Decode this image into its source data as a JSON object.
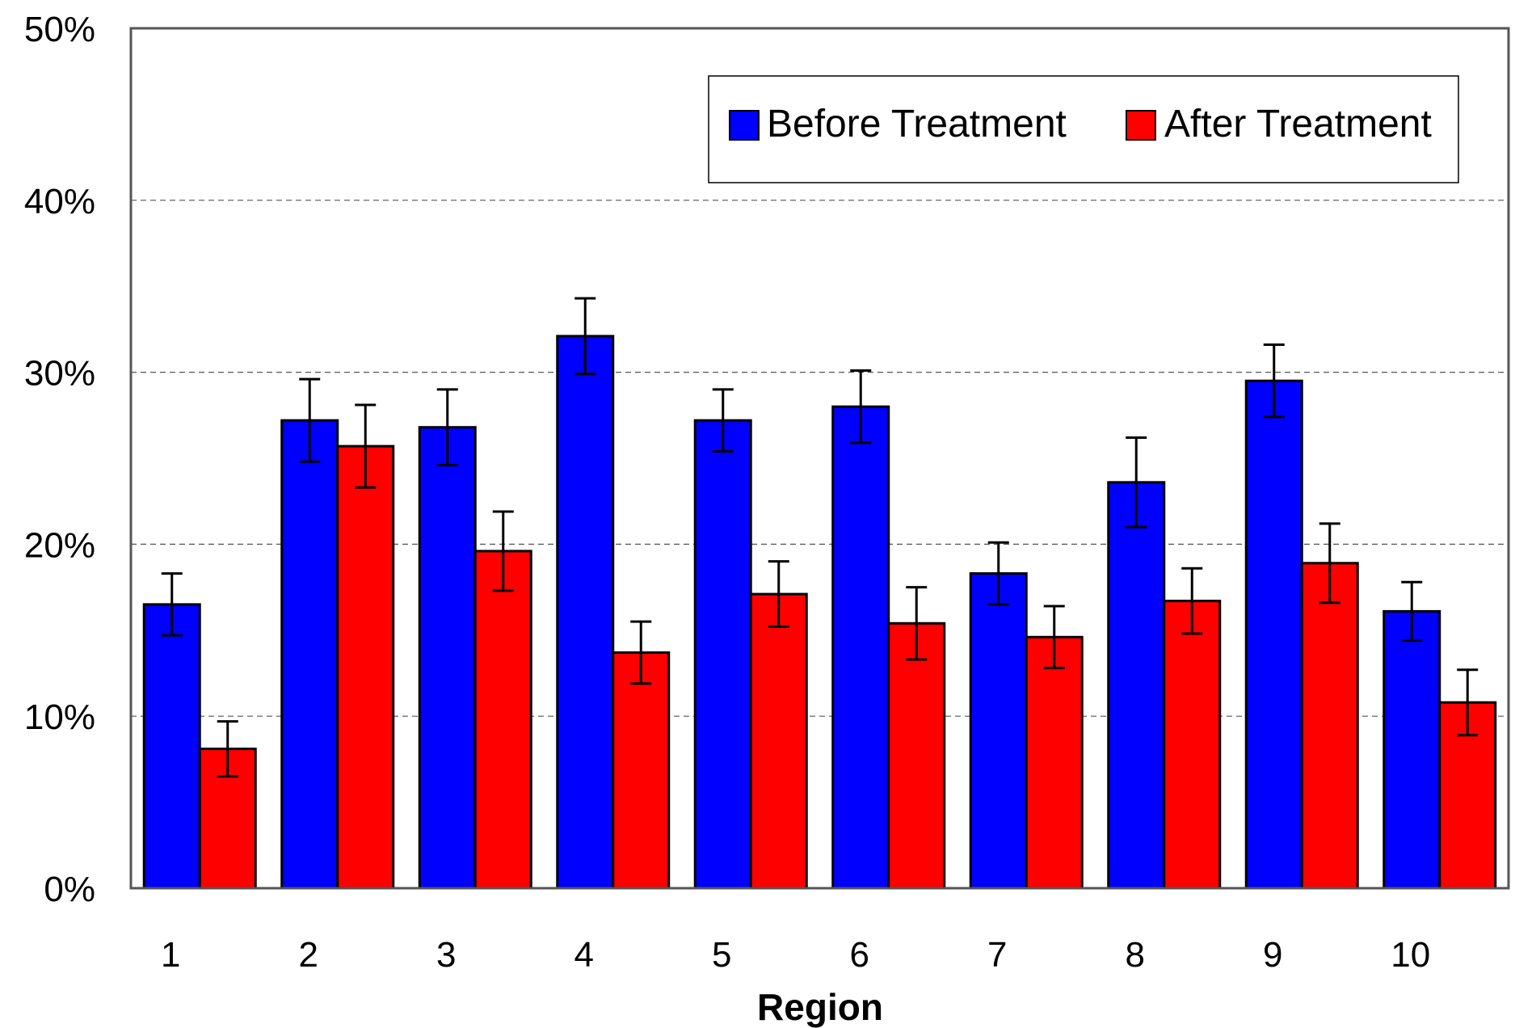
{
  "chart_data": {
    "type": "bar",
    "title": "",
    "xlabel": "Region",
    "ylabel": "",
    "categories": [
      "1",
      "2",
      "3",
      "4",
      "5",
      "6",
      "7",
      "8",
      "9",
      "10"
    ],
    "series": [
      {
        "name": "Before Treatment",
        "color": "#0000ff",
        "values": [
          16.5,
          27.2,
          26.8,
          32.1,
          27.2,
          28.0,
          18.3,
          23.6,
          29.5,
          16.1
        ],
        "error": [
          1.8,
          2.4,
          2.2,
          2.2,
          1.8,
          2.1,
          1.8,
          2.6,
          2.1,
          1.7
        ]
      },
      {
        "name": "After Treatment",
        "color": "#ff0000",
        "values": [
          8.1,
          25.7,
          19.6,
          13.7,
          17.1,
          15.4,
          14.6,
          16.7,
          18.9,
          10.8
        ],
        "error": [
          1.6,
          2.4,
          2.3,
          1.8,
          1.9,
          2.1,
          1.8,
          1.9,
          2.3,
          1.9
        ]
      }
    ],
    "ylim": [
      0,
      50
    ],
    "yticks": [
      0,
      10,
      20,
      30,
      40,
      50
    ],
    "ytick_labels": [
      "0%",
      "10%",
      "20%",
      "30%",
      "40%",
      "50%"
    ],
    "grid": true,
    "legend_position": "top-right"
  }
}
